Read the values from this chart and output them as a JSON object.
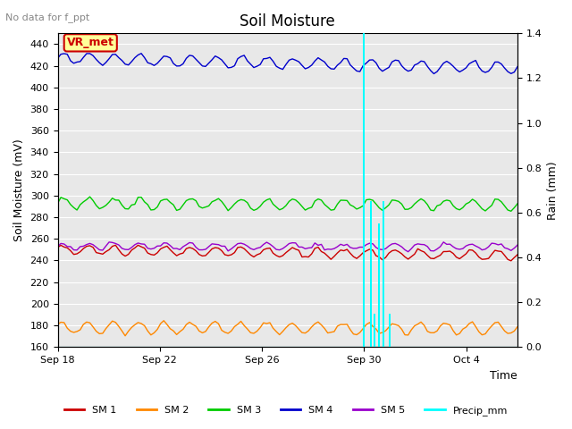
{
  "title": "Soil Moisture",
  "top_left_text": "No data for f_ppt",
  "ylabel_left": "Soil Moisture (mV)",
  "ylabel_right": "Rain (mm)",
  "xlabel": "Time",
  "ylim_left": [
    160,
    450
  ],
  "ylim_right": [
    0.0,
    1.4
  ],
  "yticks_left": [
    160,
    180,
    200,
    220,
    240,
    260,
    280,
    300,
    320,
    340,
    360,
    380,
    400,
    420,
    440
  ],
  "yticks_right": [
    0.0,
    0.2,
    0.4,
    0.6,
    0.8,
    1.0,
    1.2,
    1.4
  ],
  "xtick_labels": [
    "Sep 18",
    "Sep 22",
    "Sep 26",
    "Sep 30",
    "Oct 4"
  ],
  "xtick_positions": [
    0,
    4,
    8,
    12,
    16
  ],
  "xlim": [
    0,
    18
  ],
  "background_color": "#e8e8e8",
  "grid_color": "#ffffff",
  "sm1_color": "#cc0000",
  "sm2_color": "#ff8800",
  "sm3_color": "#00cc00",
  "sm4_color": "#0000cc",
  "sm5_color": "#9900cc",
  "precip_color": "#00ffff",
  "sm1_base": 250,
  "sm2_base": 178,
  "sm3_base": 293,
  "sm4_base": 427,
  "sm5_base": 253,
  "sm1_amp": 4,
  "sm2_amp": 5,
  "sm3_amp": 5,
  "sm4_amp": 5,
  "sm5_amp": 3,
  "sm1_trend": -0.3,
  "sm2_trend": -0.05,
  "sm3_trend": -0.1,
  "sm4_trend": -0.5,
  "sm5_trend": 0.0,
  "precip_times": [
    12.0,
    12.25,
    12.42,
    12.58,
    12.75,
    13.0
  ],
  "precip_vals": [
    1.4,
    0.65,
    0.15,
    0.55,
    0.65,
    0.15
  ],
  "precip_bar_width": 0.07,
  "legend_labels": [
    "SM 1",
    "SM 2",
    "SM 3",
    "SM 4",
    "SM 5",
    "Precip_mm"
  ],
  "vr_met_label": "VR_met",
  "vr_met_color": "#cc0000",
  "vr_met_bg": "#ffff99",
  "title_fontsize": 12,
  "label_fontsize": 9,
  "tick_fontsize": 8,
  "legend_fontsize": 8,
  "figwidth": 6.4,
  "figheight": 4.8,
  "dpi": 100
}
